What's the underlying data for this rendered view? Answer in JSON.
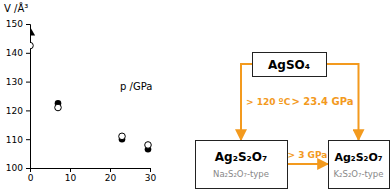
{
  "chart_data": {
    "type": "scatter",
    "x_label": "p /GPa",
    "y_label": "V /Å³",
    "xlim": [
      0,
      30
    ],
    "xticks": [
      0,
      10,
      20,
      30
    ],
    "ylim": [
      100,
      150
    ],
    "yticks": [
      100,
      110,
      120,
      130,
      140,
      150
    ],
    "series": [
      {
        "x": [
          0
        ],
        "values": [
          147
        ],
        "marker": "triangle",
        "color": "#000000"
      },
      {
        "x": [
          7,
          23,
          29.5
        ],
        "values": [
          122.5,
          110,
          106.5
        ],
        "marker": "circle",
        "color": "#000000"
      },
      {
        "x": [
          0,
          7,
          23,
          29.5
        ],
        "values": [
          142.5,
          121,
          111,
          108
        ],
        "marker": "open-circle",
        "color": "#000000"
      }
    ]
  },
  "diagram": {
    "nodes": [
      {
        "label": "AgSO₄"
      },
      {
        "label": "Ag₂S₂O₇",
        "subtitle": "Na₂S₂O₇-type"
      },
      {
        "label": "Ag₂S₂O₇",
        "subtitle": "K₂S₂O₇-type"
      }
    ],
    "edges": [
      {
        "from": 0,
        "to": 1,
        "label": "> 120 ºC"
      },
      {
        "from": 0,
        "to": 2,
        "label": "> 23.4 GPa"
      },
      {
        "from": 1,
        "to": 2,
        "label": "> 3 GPa"
      }
    ]
  }
}
